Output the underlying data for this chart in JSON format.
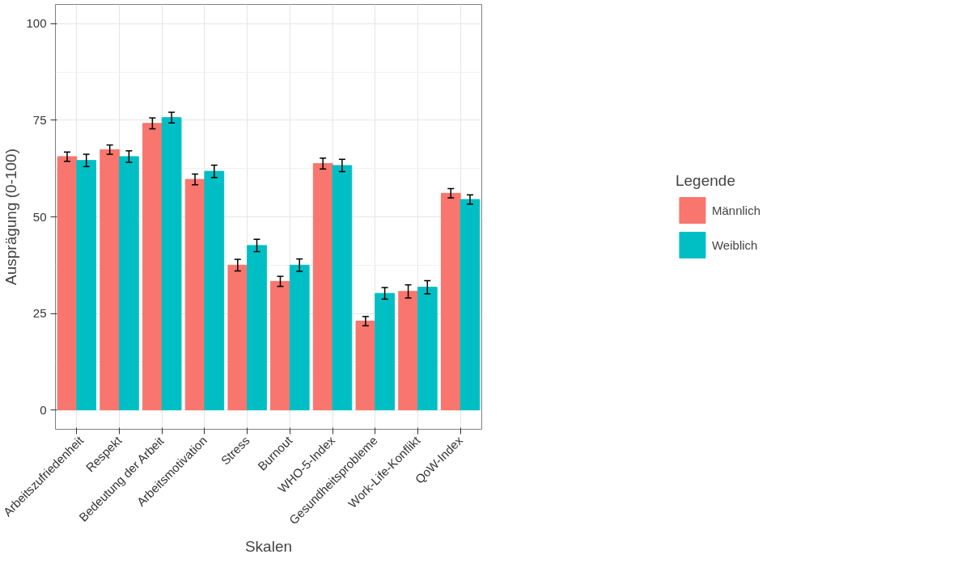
{
  "chart_data": {
    "type": "bar",
    "xlabel": "Skalen",
    "ylabel": "Ausprägung (0-100)",
    "legend_title": "Legende",
    "categories": [
      "Arbeitszufriedenheit",
      "Respekt",
      "Bedeutung der Arbeit",
      "Arbeitsmotivation",
      "Stress",
      "Burnout",
      "WHO-5-Index",
      "Gesundheitsprobleme",
      "Work-Life-Konflikt",
      "QoW-Index"
    ],
    "series": [
      {
        "name": "Männlich",
        "color": "#f8766d",
        "values": [
          65.6,
          67.4,
          74.2,
          59.7,
          37.5,
          33.3,
          63.8,
          23.0,
          30.7,
          56.1
        ],
        "errors": [
          1.2,
          1.2,
          1.4,
          1.4,
          1.5,
          1.3,
          1.4,
          1.2,
          1.7,
          1.2
        ]
      },
      {
        "name": "Weiblich",
        "color": "#00bfc4",
        "values": [
          64.6,
          65.6,
          75.7,
          61.8,
          42.6,
          37.5,
          63.3,
          30.2,
          31.8,
          54.5
        ],
        "errors": [
          1.6,
          1.5,
          1.4,
          1.6,
          1.6,
          1.6,
          1.6,
          1.5,
          1.7,
          1.2
        ]
      }
    ],
    "ylim": [
      -5,
      105
    ],
    "yticks": [
      0,
      25,
      50,
      75,
      100
    ],
    "grid": true,
    "legend": "right"
  }
}
